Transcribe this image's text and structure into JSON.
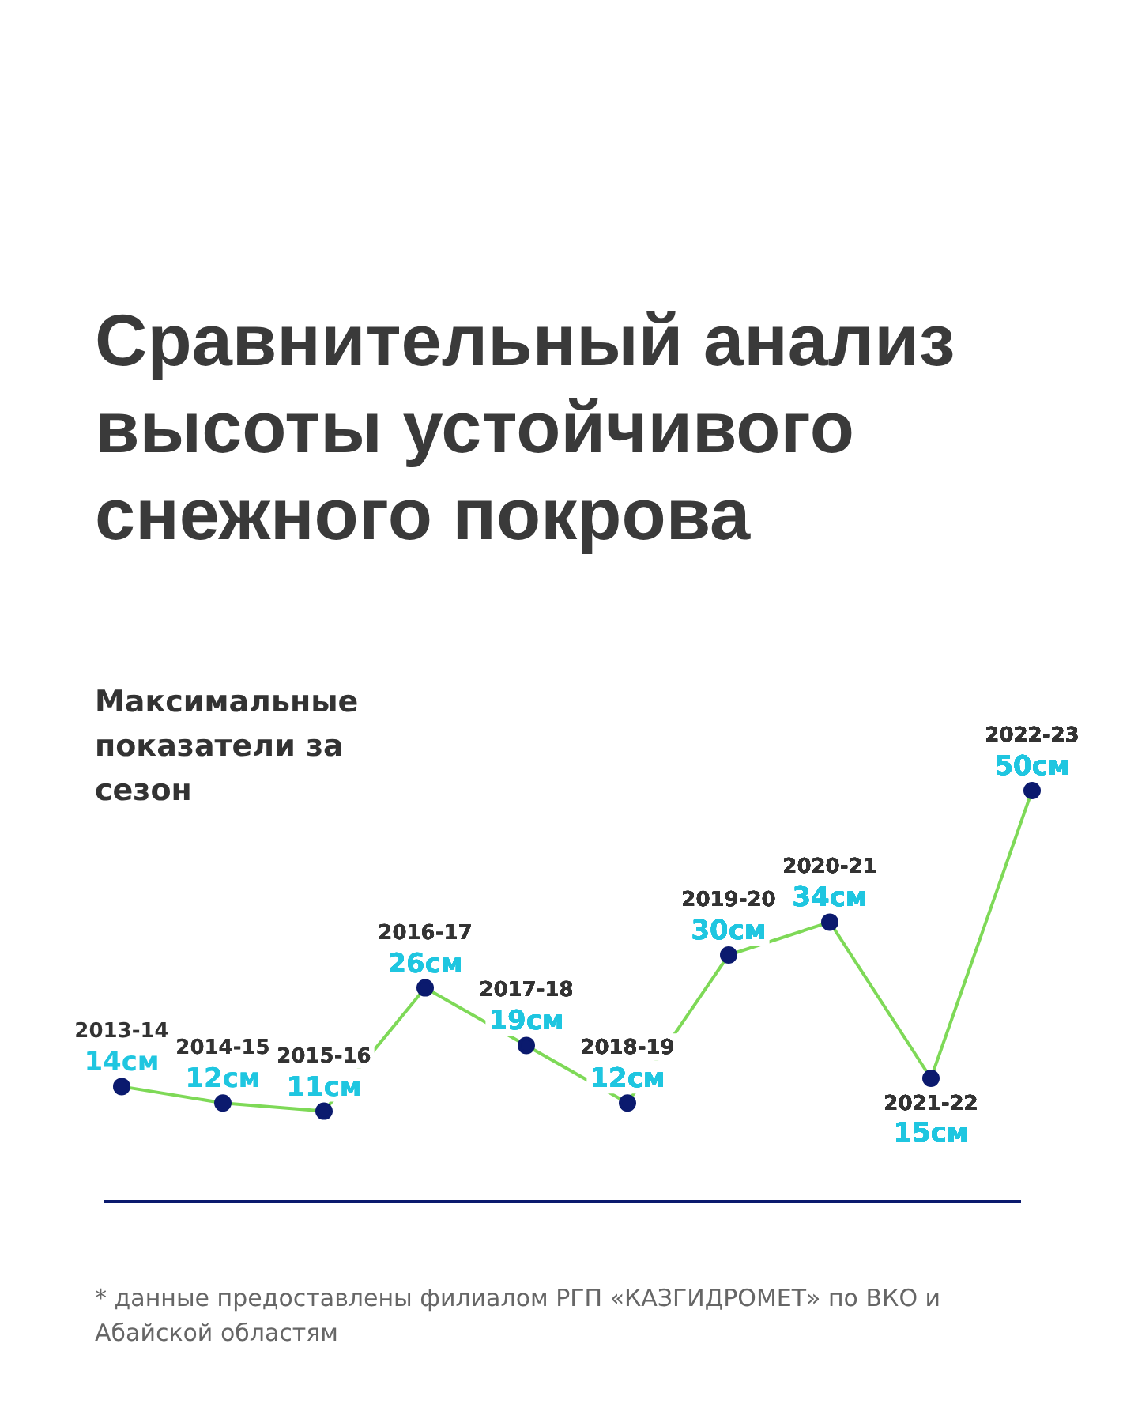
{
  "chart_data": {
    "type": "line",
    "title": "Сравнительный анализ высоты устойчивого снежного покрова",
    "subtitle": "Максимальные показатели за сезон",
    "categories": [
      "2013-14",
      "2014-15",
      "2015-16",
      "2016-17",
      "2017-18",
      "2018-19",
      "2019-20",
      "2020-21",
      "2021-22",
      "2022-23"
    ],
    "series": [
      {
        "color": "#7ed957",
        "values": [
          14,
          12,
          11,
          26,
          19,
          12,
          30,
          34,
          15,
          50
        ],
        "value_labels": [
          "14см",
          "12см",
          "11см",
          "26см",
          "19см",
          "12см",
          "30см",
          "34см",
          "15см",
          "50см"
        ]
      }
    ],
    "marker": "circle",
    "legend": false,
    "tick_labels": false,
    "annotations": [
      "* данные предоставлены филиалом РГП «КАЗГИДРОМЕТ» по ВКО и Абайской областям"
    ]
  }
}
